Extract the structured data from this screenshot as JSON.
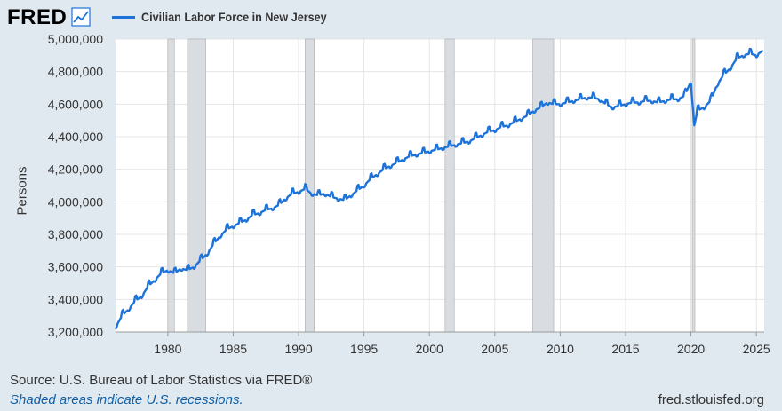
{
  "header": {
    "logo_text": "FRED",
    "logo_icon": "trend-graph-icon",
    "legend_label": "Civilian Labor Force in New Jersey",
    "legend_color": "#1e73d9"
  },
  "footer": {
    "source": "Source: U.S. Bureau of Labor Statistics via FRED®",
    "note": "Shaded areas indicate U.S. recessions.",
    "url": "fred.stlouisfed.org"
  },
  "chart_data": {
    "type": "line",
    "title": "Civilian Labor Force in New Jersey",
    "xlabel": "",
    "ylabel": "Persons",
    "xlim": [
      1976.0,
      2025.6
    ],
    "ylim": [
      3200000,
      5000000
    ],
    "grid": true,
    "legend": "top-left",
    "line_color": "#1e73d9",
    "recession_color": "#d9dde2",
    "x_ticks": [
      1980,
      1985,
      1990,
      1995,
      2000,
      2005,
      2010,
      2015,
      2020,
      2025
    ],
    "x_tick_labels": [
      "1980",
      "1985",
      "1990",
      "1995",
      "2000",
      "2005",
      "2010",
      "2015",
      "2020",
      "2025"
    ],
    "y_ticks": [
      3200000,
      3400000,
      3600000,
      3800000,
      4000000,
      4200000,
      4400000,
      4600000,
      4800000,
      5000000
    ],
    "y_tick_labels": [
      "3,200,000",
      "3,400,000",
      "3,600,000",
      "3,800,000",
      "4,000,000",
      "4,200,000",
      "4,400,000",
      "4,600,000",
      "4,800,000",
      "5,000,000"
    ],
    "recessions": [
      [
        1980.0,
        1980.5
      ],
      [
        1981.5,
        1982.9
      ],
      [
        1990.5,
        1991.2
      ],
      [
        2001.2,
        2001.9
      ],
      [
        2007.9,
        2009.5
      ],
      [
        2020.1,
        2020.3
      ]
    ],
    "series": [
      {
        "name": "Civilian Labor Force in New Jersey",
        "x": [
          1976.0,
          1976.5,
          1977.0,
          1977.5,
          1978.0,
          1978.5,
          1979.0,
          1979.5,
          1980.0,
          1980.5,
          1981.0,
          1981.5,
          1982.0,
          1982.5,
          1983.0,
          1983.5,
          1984.0,
          1984.5,
          1985.0,
          1985.5,
          1986.0,
          1986.5,
          1987.0,
          1987.5,
          1988.0,
          1988.5,
          1989.0,
          1989.5,
          1990.0,
          1990.5,
          1991.0,
          1991.5,
          1992.0,
          1992.5,
          1993.0,
          1993.5,
          1994.0,
          1994.5,
          1995.0,
          1995.5,
          1996.0,
          1996.5,
          1997.0,
          1997.5,
          1998.0,
          1998.5,
          1999.0,
          1999.5,
          2000.0,
          2000.5,
          2001.0,
          2001.5,
          2002.0,
          2002.5,
          2003.0,
          2003.5,
          2004.0,
          2004.5,
          2005.0,
          2005.5,
          2006.0,
          2006.5,
          2007.0,
          2007.5,
          2008.0,
          2008.5,
          2009.0,
          2009.5,
          2010.0,
          2010.5,
          2011.0,
          2011.5,
          2012.0,
          2012.5,
          2013.0,
          2013.5,
          2014.0,
          2014.5,
          2015.0,
          2015.5,
          2016.0,
          2016.5,
          2017.0,
          2017.5,
          2018.0,
          2018.5,
          2019.0,
          2019.5,
          2020.0,
          2020.25,
          2020.5,
          2021.0,
          2021.5,
          2022.0,
          2022.5,
          2023.0,
          2023.5,
          2024.0,
          2024.5,
          2025.0,
          2025.5
        ],
        "values": [
          3230000,
          3300000,
          3340000,
          3390000,
          3420000,
          3480000,
          3520000,
          3560000,
          3580000,
          3560000,
          3590000,
          3580000,
          3600000,
          3640000,
          3680000,
          3740000,
          3790000,
          3830000,
          3850000,
          3870000,
          3890000,
          3920000,
          3930000,
          3950000,
          3960000,
          3980000,
          4020000,
          4050000,
          4060000,
          4080000,
          4050000,
          4040000,
          4050000,
          4030000,
          4020000,
          4010000,
          4040000,
          4070000,
          4100000,
          4140000,
          4170000,
          4200000,
          4220000,
          4240000,
          4260000,
          4280000,
          4290000,
          4300000,
          4310000,
          4320000,
          4330000,
          4340000,
          4350000,
          4360000,
          4370000,
          4390000,
          4410000,
          4430000,
          4440000,
          4460000,
          4470000,
          4490000,
          4510000,
          4530000,
          4560000,
          4580000,
          4610000,
          4600000,
          4600000,
          4610000,
          4620000,
          4630000,
          4640000,
          4640000,
          4630000,
          4600000,
          4580000,
          4590000,
          4600000,
          4610000,
          4610000,
          4620000,
          4620000,
          4610000,
          4620000,
          4630000,
          4630000,
          4650000,
          4740000,
          4470000,
          4560000,
          4580000,
          4620000,
          4720000,
          4780000,
          4820000,
          4880000,
          4900000,
          4910000,
          4900000,
          4930000
        ]
      }
    ]
  }
}
